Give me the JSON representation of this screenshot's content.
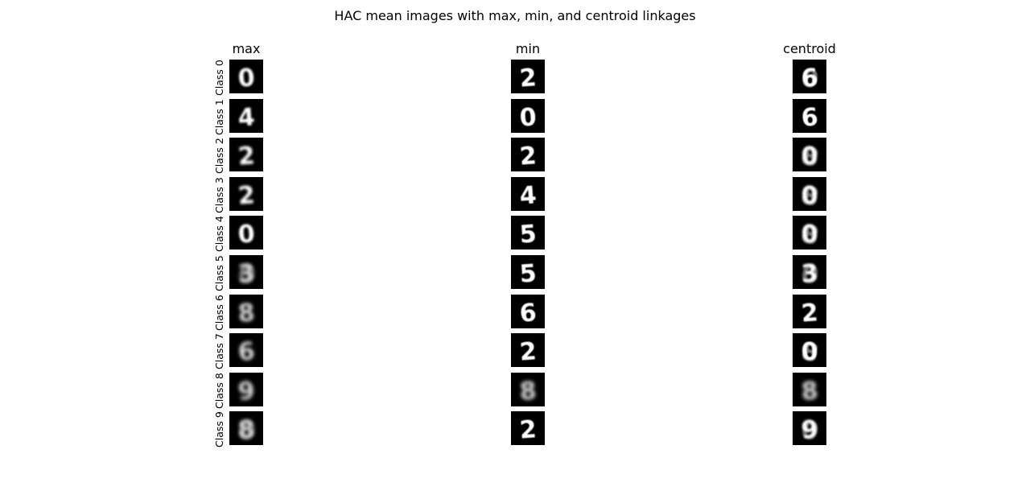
{
  "title": "HAC mean images with max, min, and centroid linkages",
  "columns": [
    {
      "title": "max",
      "glyphs": [
        "0",
        "4",
        "2",
        "2",
        "0",
        "3",
        "8",
        "6",
        "9",
        "8"
      ],
      "blur": [
        1.2,
        1.2,
        1.5,
        1.5,
        1.3,
        2.0,
        2.0,
        2.0,
        2.4,
        2.2
      ],
      "ghost": [
        false,
        false,
        false,
        false,
        false,
        true,
        false,
        false,
        false,
        true
      ]
    },
    {
      "title": "min",
      "glyphs": [
        "2",
        "0",
        "2",
        "4",
        "5",
        "5",
        "6",
        "2",
        "8",
        "2"
      ],
      "blur": [
        0.4,
        0.4,
        0.4,
        0.4,
        0.4,
        0.4,
        0.4,
        0.4,
        2.4,
        0.4
      ],
      "ghost": [
        false,
        false,
        false,
        false,
        false,
        false,
        false,
        false,
        false,
        false
      ]
    },
    {
      "title": "centroid",
      "glyphs": [
        "6",
        "6",
        "0",
        "0",
        "0",
        "3",
        "2",
        "0",
        "8",
        "9"
      ],
      "blur": [
        0.8,
        0.5,
        1.2,
        1.2,
        1.2,
        1.2,
        0.9,
        0.8,
        2.4,
        1.2
      ],
      "ghost": [
        true,
        false,
        true,
        true,
        true,
        true,
        false,
        true,
        false,
        true
      ]
    }
  ],
  "rows": [
    "Class 0",
    "Class 1",
    "Class 2",
    "Class 3",
    "Class 4",
    "Class 5",
    "Class 6",
    "Class 7",
    "Class 8",
    "Class 9"
  ]
}
